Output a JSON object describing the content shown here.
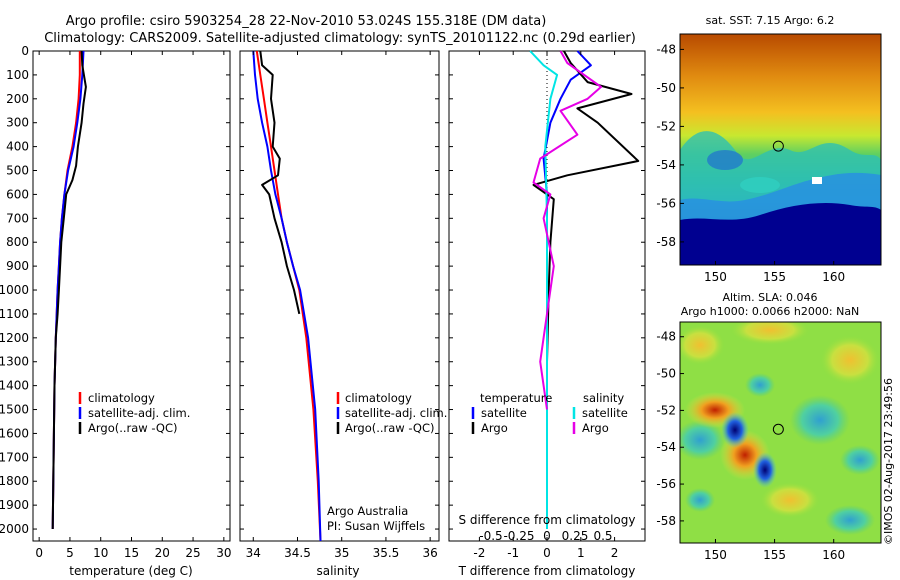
{
  "header": {
    "title_line1": "Argo profile: csiro 5903254_28 22-Nov-2010 53.024S 155.318E (DM data)",
    "title_line2": "Climatology: CARS2009. Satellite-adjusted climatology: synTS_20101122.nc (0.29d earlier)"
  },
  "colors": {
    "climatology": "#ff0000",
    "satellite": "#0000ff",
    "argo": "#000000",
    "salinity_satellite": "#00e5e5",
    "salinity_argo": "#e600e6"
  },
  "chart_data": [
    {
      "id": "temperature",
      "type": "line",
      "xlabel": "temperature (deg C)",
      "ylabel": "",
      "xlim": [
        -1,
        31
      ],
      "ylim": [
        2050,
        0
      ],
      "xticks": [
        0,
        5,
        10,
        15,
        20,
        25,
        30
      ],
      "yticks": [
        0,
        100,
        200,
        300,
        400,
        500,
        600,
        700,
        800,
        900,
        1000,
        1100,
        1200,
        1300,
        1400,
        1500,
        1600,
        1700,
        1800,
        1900,
        2000
      ],
      "legend": [
        "climatology",
        "satellite-adj. clim.",
        "Argo(..raw -QC)"
      ],
      "series": [
        {
          "name": "climatology",
          "color": "#ff0000",
          "x": [
            6.6,
            6.6,
            6.4,
            6.0,
            5.4,
            4.6,
            4.1,
            3.7,
            3.4,
            3.2,
            3.0,
            2.7,
            2.5,
            2.4,
            2.3,
            2.2
          ],
          "y": [
            0,
            100,
            200,
            300,
            400,
            500,
            600,
            700,
            800,
            900,
            1000,
            1200,
            1400,
            1600,
            1800,
            2000
          ]
        },
        {
          "name": "satellite-adj. clim.",
          "color": "#0000ff",
          "x": [
            7.2,
            7.0,
            6.7,
            6.2,
            5.6,
            4.7,
            4.1,
            3.7,
            3.4,
            3.2,
            3.0,
            2.7,
            2.5,
            2.4,
            2.3,
            2.2
          ],
          "y": [
            0,
            100,
            200,
            300,
            400,
            500,
            600,
            700,
            800,
            900,
            1000,
            1200,
            1400,
            1600,
            1800,
            2000
          ]
        },
        {
          "name": "Argo(..raw -QC)",
          "color": "#000000",
          "x": [
            6.9,
            7.0,
            7.6,
            7.2,
            6.9,
            6.3,
            6.0,
            5.4,
            4.4,
            4.0,
            3.6,
            3.4,
            3.2,
            3.0,
            2.7,
            2.5,
            2.4,
            2.3,
            2.2
          ],
          "y": [
            0,
            60,
            150,
            220,
            300,
            400,
            480,
            540,
            600,
            700,
            800,
            900,
            1000,
            1100,
            1200,
            1400,
            1600,
            1800,
            2000
          ]
        }
      ]
    },
    {
      "id": "salinity",
      "type": "line",
      "xlabel": "salinity",
      "ylabel": "",
      "xlim": [
        33.85,
        36.1
      ],
      "ylim": [
        2050,
        0
      ],
      "xticks": [
        34,
        34.5,
        35,
        35.5,
        36
      ],
      "xtick_labels": [
        "34",
        "34.5",
        "35",
        "35.5",
        "36"
      ],
      "legend": [
        "climatology",
        "satellite-adj. clim.",
        "Argo(..raw -QC)"
      ],
      "credits": [
        "Argo Australia",
        "PI: Susan Wijffels"
      ],
      "series": [
        {
          "name": "climatology",
          "color": "#ff0000",
          "x": [
            34.04,
            34.08,
            34.12,
            34.16,
            34.2,
            34.24,
            34.28,
            34.32,
            34.38,
            34.45,
            34.52,
            34.6,
            34.68,
            34.73,
            34.76
          ],
          "y": [
            0,
            100,
            200,
            300,
            400,
            500,
            600,
            700,
            800,
            900,
            1000,
            1200,
            1500,
            1800,
            2050
          ]
        },
        {
          "name": "satellite-adj. clim.",
          "color": "#0000ff",
          "x": [
            34.0,
            34.02,
            34.05,
            34.1,
            34.16,
            34.2,
            34.25,
            34.32,
            34.38,
            34.45,
            34.53,
            34.62,
            34.7,
            34.74,
            34.76
          ],
          "y": [
            0,
            100,
            200,
            300,
            400,
            500,
            600,
            700,
            800,
            900,
            1000,
            1200,
            1500,
            1800,
            2050
          ]
        },
        {
          "name": "Argo(..raw -QC)",
          "color": "#000000",
          "x": [
            34.08,
            34.1,
            34.22,
            34.2,
            34.24,
            34.22,
            34.3,
            34.28,
            34.1,
            34.18,
            34.24,
            34.32,
            34.38,
            34.46,
            34.52
          ],
          "y": [
            0,
            60,
            100,
            200,
            300,
            400,
            450,
            520,
            560,
            600,
            700,
            800,
            900,
            1000,
            1100
          ]
        }
      ]
    },
    {
      "id": "difference",
      "type": "line",
      "xlabel": "T difference from climatology",
      "xlabel_top": "S difference from climatology",
      "ylabel": "",
      "xlim": [
        -2.9,
        2.9
      ],
      "ylim": [
        2050,
        0
      ],
      "xticks": [
        -2,
        -1,
        0,
        1,
        2
      ],
      "s_ticks": [
        -0.5,
        -0.25,
        0,
        0.25,
        0.5
      ],
      "s_tick_labels": [
        "-0.5",
        "-0.25",
        "0",
        "0.25",
        "0.5"
      ],
      "legend_temperature": {
        "heading": "temperature",
        "items": [
          "satellite",
          "Argo"
        ]
      },
      "legend_salinity": {
        "heading": "salinity",
        "items": [
          "satellite",
          "Argo"
        ]
      },
      "series": [
        {
          "name": "satellite",
          "group": "temperature",
          "color": "#0000ff",
          "x": [
            0.9,
            1.3,
            0.7,
            0.4,
            0.1,
            -0.1,
            0.0,
            0.0,
            0.0,
            0.0
          ],
          "y": [
            0,
            60,
            120,
            200,
            300,
            450,
            600,
            900,
            1400,
            2000
          ]
        },
        {
          "name": "Argo",
          "group": "temperature",
          "color": "#000000",
          "x": [
            0.5,
            0.7,
            1.2,
            2.5,
            0.9,
            1.5,
            2.7,
            0.6,
            -0.4,
            0.2,
            0.1,
            0.05,
            0.0,
            0.0
          ],
          "y": [
            0,
            50,
            130,
            180,
            240,
            300,
            460,
            520,
            560,
            620,
            800,
            1000,
            1300,
            1500
          ]
        },
        {
          "name": "satellite",
          "group": "salinity",
          "color": "#00e5e5",
          "x": [
            -0.5,
            -0.1,
            0.3,
            0.1,
            -0.05,
            0.0,
            0.0,
            0.0,
            0.0
          ],
          "y": [
            0,
            60,
            100,
            200,
            400,
            700,
            1000,
            1500,
            2000
          ]
        },
        {
          "name": "Argo",
          "group": "salinity",
          "color": "#e600e6",
          "x": [
            0.4,
            0.6,
            1.6,
            1.2,
            0.4,
            0.9,
            -0.2,
            -0.4,
            0.1,
            -0.1,
            0.2,
            0.0,
            -0.2,
            0.0
          ],
          "y": [
            0,
            50,
            150,
            200,
            250,
            350,
            450,
            550,
            600,
            700,
            900,
            1100,
            1300,
            1500
          ]
        }
      ]
    },
    {
      "id": "sst_map",
      "type": "heatmap",
      "title": "sat. SST: 7.15 Argo: 6.2",
      "xlim": [
        147,
        164
      ],
      "ylim": [
        -59.2,
        -47.2
      ],
      "xticks": [
        150,
        155,
        160
      ],
      "yticks": [
        -48,
        -50,
        -52,
        -54,
        -56,
        -58
      ],
      "marker": {
        "lon": 155.318,
        "lat": -53.024
      }
    },
    {
      "id": "sla_map",
      "type": "heatmap",
      "title": "Altim. SLA: 0.046",
      "subtitle": "Argo h1000: 0.0066 h2000: NaN",
      "xlim": [
        147,
        164
      ],
      "ylim": [
        -59.2,
        -47.2
      ],
      "xticks": [
        150,
        155,
        160
      ],
      "yticks": [
        -48,
        -50,
        -52,
        -54,
        -56,
        -58
      ],
      "marker": {
        "lon": 155.318,
        "lat": -53.024
      }
    }
  ],
  "watermark": "©IMOS 02-Aug-2017 23:49:56"
}
